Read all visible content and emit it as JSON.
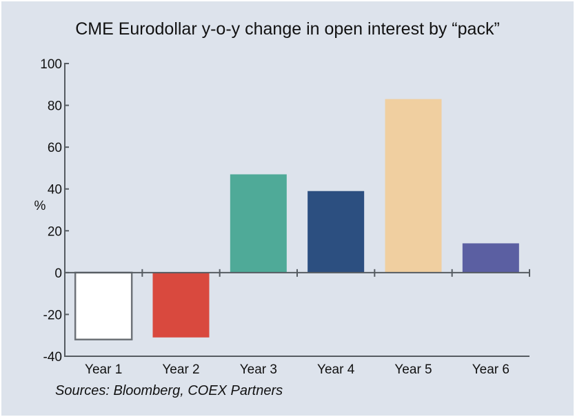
{
  "chart_data": {
    "type": "bar",
    "title": "CME Eurodollar y-o-y change in open interest by “pack”",
    "ylabel": "%",
    "xlabel": "",
    "categories": [
      "Year 1",
      "Year 2",
      "Year 3",
      "Year 4",
      "Year 5",
      "Year 6"
    ],
    "values": [
      -32,
      -31,
      47,
      39,
      83,
      14
    ],
    "colors": [
      "#ffffff",
      "#d9493e",
      "#4faa98",
      "#2c4f80",
      "#f0cfa0",
      "#5b5fa2"
    ],
    "bar_outline": "#6d7278",
    "ylim": [
      -40,
      100
    ],
    "yticks": [
      100,
      80,
      60,
      40,
      20,
      0,
      -20,
      -40
    ],
    "grid": false,
    "source": "Sources: Bloomberg, COEX Partners"
  }
}
